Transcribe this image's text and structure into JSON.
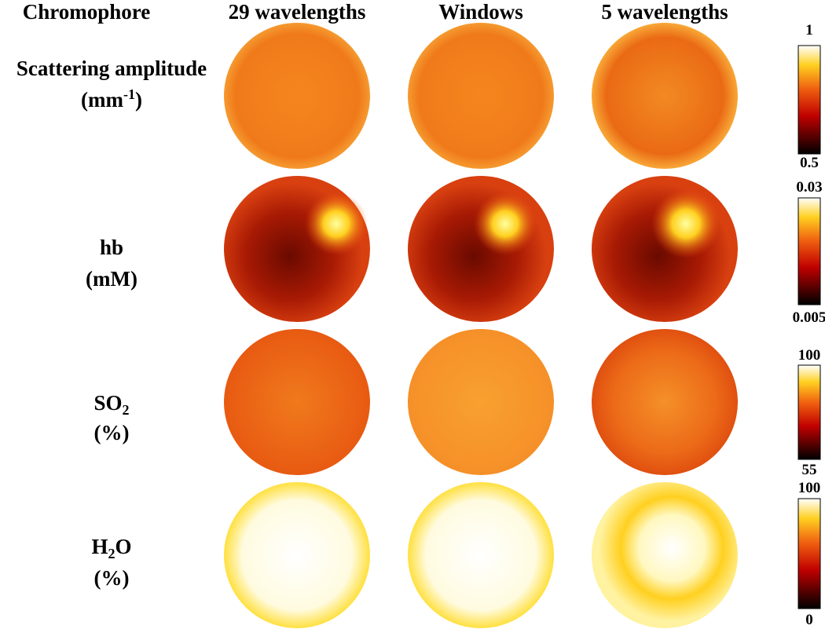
{
  "header": {
    "columns": [
      "Chromophore",
      "29 wavelengths",
      "Windows",
      "5 wavelengths"
    ]
  },
  "rows": [
    {
      "name": "Scattering amplitude",
      "unit": {
        "base": "(mm",
        "sup": "-1",
        "tail": ")"
      },
      "colorbar": {
        "max": "1",
        "min": "0.5"
      }
    },
    {
      "name": "hb",
      "unit": "(mM)",
      "colorbar": {
        "max": "0.03",
        "min": "0.005"
      }
    },
    {
      "name": {
        "base": "SO",
        "sub": "2"
      },
      "unit": "(%)",
      "colorbar": {
        "max": "100",
        "min": "55"
      }
    },
    {
      "name": {
        "base": "H",
        "sub": "2",
        "tail": "O"
      },
      "unit": "(%)",
      "colorbar": {
        "max": "100",
        "min": "0"
      }
    }
  ]
}
